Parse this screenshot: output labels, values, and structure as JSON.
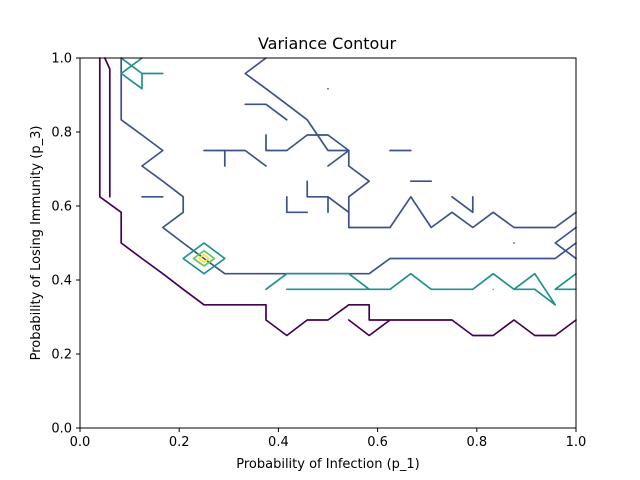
{
  "chart_data": {
    "type": "contour",
    "title": "Variance Contour",
    "xlabel": "Probability of Infection (p_1)",
    "ylabel": "Probability of Losing Immunity (p_3)",
    "xlim": [
      0.0,
      1.0
    ],
    "ylim": [
      0.0,
      1.0
    ],
    "xticks": [
      "0.0",
      "0.2",
      "0.4",
      "0.6",
      "0.8",
      "1.0"
    ],
    "yticks": [
      "0.0",
      "0.2",
      "0.4",
      "0.6",
      "0.8",
      "1.0"
    ],
    "xtick_values": [
      0.0,
      0.2,
      0.4,
      0.6,
      0.8,
      1.0
    ],
    "ytick_values": [
      0.0,
      0.2,
      0.4,
      0.6,
      0.8,
      1.0
    ],
    "grid": false,
    "legend": "none",
    "colormap": [
      "#440154",
      "#3b528b",
      "#21918c",
      "#5ec962",
      "#fde725"
    ],
    "levels": [
      {
        "level": 1,
        "color": "#440154",
        "lines": [
          [
            [
              0.04,
              1.0
            ],
            [
              0.04,
              0.625
            ],
            [
              0.083,
              0.583
            ],
            [
              0.083,
              0.5
            ],
            [
              0.125,
              0.458
            ],
            [
              0.167,
              0.417
            ],
            [
              0.208,
              0.375
            ],
            [
              0.25,
              0.333
            ],
            [
              0.292,
              0.333
            ],
            [
              0.333,
              0.333
            ],
            [
              0.375,
              0.333
            ],
            [
              0.375,
              0.292
            ],
            [
              0.417,
              0.25
            ],
            [
              0.458,
              0.292
            ],
            [
              0.5,
              0.292
            ],
            [
              0.542,
              0.333
            ],
            [
              0.583,
              0.333
            ],
            [
              0.583,
              0.292
            ],
            [
              0.625,
              0.292
            ],
            [
              0.667,
              0.292
            ],
            [
              0.708,
              0.292
            ],
            [
              0.75,
              0.292
            ],
            [
              0.792,
              0.25
            ],
            [
              0.833,
              0.25
            ],
            [
              0.875,
              0.292
            ],
            [
              0.917,
              0.25
            ],
            [
              0.958,
              0.25
            ],
            [
              1.0,
              0.292
            ]
          ],
          [
            [
              0.542,
              0.292
            ],
            [
              0.583,
              0.25
            ],
            [
              0.625,
              0.292
            ]
          ],
          [
            [
              0.05,
              1.0
            ],
            [
              0.06,
              0.97
            ],
            [
              0.06,
              0.625
            ]
          ]
        ]
      },
      {
        "level": 2,
        "color": "#3b528b",
        "lines": [
          [
            [
              0.083,
              1.0
            ],
            [
              0.083,
              0.875
            ],
            [
              0.083,
              0.833
            ],
            [
              0.125,
              0.792
            ],
            [
              0.167,
              0.75
            ],
            [
              0.125,
              0.708
            ],
            [
              0.167,
              0.667
            ],
            [
              0.208,
              0.625
            ],
            [
              0.208,
              0.583
            ],
            [
              0.167,
              0.542
            ],
            [
              0.208,
              0.5
            ],
            [
              0.25,
              0.458
            ],
            [
              0.292,
              0.417
            ],
            [
              0.333,
              0.417
            ],
            [
              0.375,
              0.417
            ],
            [
              0.417,
              0.417
            ],
            [
              0.458,
              0.417
            ],
            [
              0.5,
              0.417
            ],
            [
              0.542,
              0.417
            ],
            [
              0.583,
              0.417
            ],
            [
              0.625,
              0.458
            ],
            [
              0.667,
              0.458
            ],
            [
              0.708,
              0.458
            ],
            [
              0.75,
              0.458
            ],
            [
              0.792,
              0.458
            ],
            [
              0.833,
              0.458
            ],
            [
              0.875,
              0.458
            ],
            [
              0.917,
              0.458
            ],
            [
              0.958,
              0.458
            ],
            [
              1.0,
              0.5
            ]
          ],
          [
            [
              1.0,
              0.583
            ],
            [
              0.958,
              0.542
            ],
            [
              0.917,
              0.542
            ],
            [
              0.875,
              0.542
            ],
            [
              0.833,
              0.583
            ],
            [
              0.792,
              0.542
            ],
            [
              0.75,
              0.583
            ],
            [
              0.708,
              0.542
            ],
            [
              0.667,
              0.625
            ],
            [
              0.625,
              0.542
            ],
            [
              0.583,
              0.542
            ],
            [
              0.542,
              0.542
            ],
            [
              0.542,
              0.625
            ],
            [
              0.583,
              0.667
            ],
            [
              0.542,
              0.708
            ],
            [
              0.542,
              0.75
            ],
            [
              0.5,
              0.75
            ],
            [
              0.458,
              0.833
            ],
            [
              0.417,
              0.875
            ],
            [
              0.375,
              0.917
            ],
            [
              0.333,
              0.958
            ],
            [
              0.375,
              1.0
            ]
          ],
          [
            [
              0.125,
              0.625
            ],
            [
              0.167,
              0.625
            ],
            [
              0.125,
              0.625
            ]
          ],
          [
            [
              0.25,
              0.75
            ],
            [
              0.292,
              0.75
            ],
            [
              0.292,
              0.708
            ]
          ],
          [
            [
              0.292,
              0.75
            ],
            [
              0.333,
              0.75
            ],
            [
              0.375,
              0.708
            ]
          ],
          [
            [
              0.375,
              0.792
            ],
            [
              0.375,
              0.75
            ],
            [
              0.417,
              0.75
            ],
            [
              0.458,
              0.792
            ],
            [
              0.5,
              0.792
            ],
            [
              0.542,
              0.75
            ],
            [
              0.5,
              0.708
            ]
          ],
          [
            [
              0.417,
              0.625
            ],
            [
              0.417,
              0.583
            ],
            [
              0.458,
              0.583
            ]
          ],
          [
            [
              0.458,
              0.667
            ],
            [
              0.458,
              0.625
            ],
            [
              0.5,
              0.625
            ]
          ],
          [
            [
              0.5,
              0.583
            ],
            [
              0.5,
              0.625
            ],
            [
              0.542,
              0.583
            ]
          ],
          [
            [
              0.625,
              0.75
            ],
            [
              0.667,
              0.75
            ]
          ],
          [
            [
              0.667,
              0.667
            ],
            [
              0.708,
              0.667
            ]
          ],
          [
            [
              0.75,
              0.625
            ],
            [
              0.792,
              0.583
            ],
            [
              0.792,
              0.625
            ]
          ],
          [
            [
              0.875,
              0.5
            ],
            [
              0.875,
              0.5
            ]
          ],
          [
            [
              0.5,
              0.917
            ],
            [
              0.5,
              0.917
            ]
          ],
          [
            [
              0.333,
              0.875
            ],
            [
              0.375,
              0.875
            ],
            [
              0.417,
              0.833
            ]
          ],
          [
            [
              1.0,
              0.542
            ],
            [
              0.958,
              0.5
            ],
            [
              1.0,
              0.458
            ]
          ]
        ]
      },
      {
        "level": 3,
        "color": "#21918c",
        "lines": [
          [
            [
              0.083,
              1.0
            ],
            [
              0.125,
              0.958
            ],
            [
              0.167,
              0.958
            ],
            [
              0.125,
              0.958
            ],
            [
              0.125,
              0.917
            ],
            [
              0.083,
              0.958
            ],
            [
              0.125,
              1.0
            ]
          ],
          [
            [
              0.208,
              0.458
            ],
            [
              0.25,
              0.5
            ],
            [
              0.292,
              0.458
            ],
            [
              0.25,
              0.417
            ],
            [
              0.208,
              0.458
            ]
          ],
          [
            [
              0.375,
              0.375
            ],
            [
              0.417,
              0.417
            ],
            [
              0.458,
              0.417
            ],
            [
              0.5,
              0.417
            ],
            [
              0.542,
              0.417
            ],
            [
              0.583,
              0.375
            ],
            [
              0.542,
              0.375
            ],
            [
              0.458,
              0.375
            ],
            [
              0.417,
              0.375
            ]
          ],
          [
            [
              0.583,
              0.375
            ],
            [
              0.625,
              0.375
            ],
            [
              0.667,
              0.417
            ],
            [
              0.708,
              0.375
            ],
            [
              0.75,
              0.375
            ],
            [
              0.792,
              0.375
            ],
            [
              0.833,
              0.417
            ],
            [
              0.875,
              0.375
            ],
            [
              0.917,
              0.375
            ],
            [
              0.958,
              0.333
            ],
            [
              0.917,
              0.417
            ],
            [
              0.875,
              0.375
            ]
          ],
          [
            [
              1.0,
              0.417
            ],
            [
              0.958,
              0.375
            ],
            [
              1.0,
              0.375
            ]
          ]
        ]
      },
      {
        "level": 4,
        "color": "#5ec962",
        "lines": [
          [
            [
              0.229,
              0.458
            ],
            [
              0.25,
              0.479
            ],
            [
              0.271,
              0.458
            ],
            [
              0.25,
              0.438
            ],
            [
              0.229,
              0.458
            ]
          ],
          [
            [
              0.833,
              0.375
            ],
            [
              0.833,
              0.375
            ]
          ]
        ]
      },
      {
        "level": 5,
        "color": "#fde725",
        "lines": [
          [
            [
              0.24,
              0.458
            ],
            [
              0.25,
              0.468
            ],
            [
              0.26,
              0.458
            ],
            [
              0.25,
              0.448
            ],
            [
              0.24,
              0.458
            ]
          ]
        ]
      }
    ]
  }
}
